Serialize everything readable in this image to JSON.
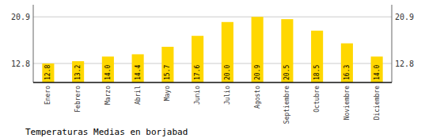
{
  "chart_data": {
    "type": "bar",
    "title": "Temperaturas Medias en borjabad",
    "categories": [
      "Enero",
      "Febrero",
      "Marzo",
      "Abril",
      "Mayo",
      "Junio",
      "Julio",
      "Agosto",
      "Septiembre",
      "Octubre",
      "Noviembre",
      "Diciembre"
    ],
    "values": [
      12.8,
      13.2,
      14.0,
      14.4,
      15.7,
      17.6,
      20.0,
      20.9,
      20.5,
      18.5,
      16.3,
      14.0
    ],
    "value_labels": [
      "12.8",
      "13.2",
      "14.0",
      "14.4",
      "15.7",
      "17.6",
      "20.0",
      "20.9",
      "20.5",
      "18.5",
      "16.3",
      "14.0"
    ],
    "data_labels": true,
    "color": "#FFD700",
    "ylim": [
      9.5,
      23.0
    ],
    "yticks": [
      12.8,
      20.9
    ],
    "grid": true
  }
}
